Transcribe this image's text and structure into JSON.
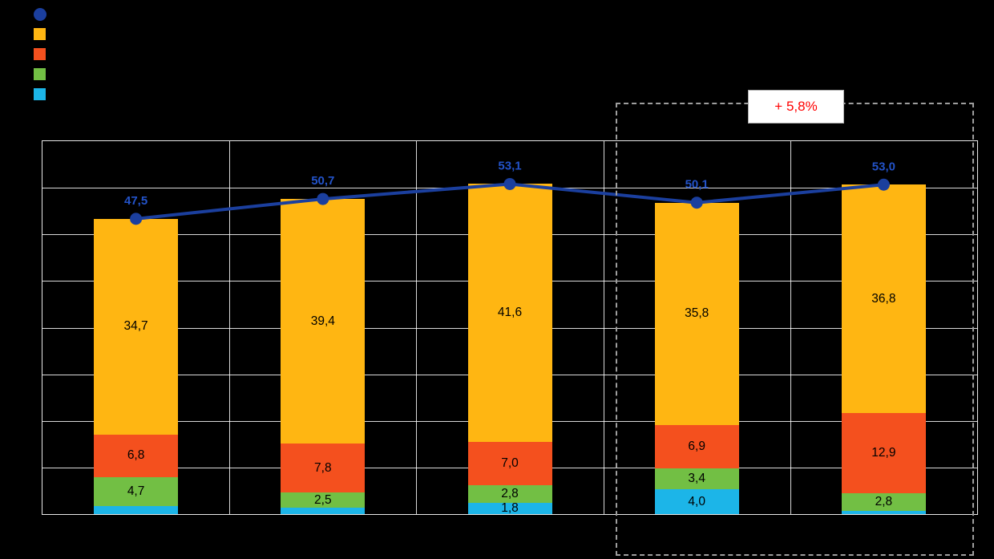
{
  "chart_data": {
    "type": "bar",
    "stacked": true,
    "title": "",
    "categories": [
      "",
      "",
      "",
      "",
      ""
    ],
    "ylim": [
      0,
      60
    ],
    "y_divisions": 8,
    "grid": true,
    "legend_position": "top-left",
    "series": [
      {
        "name": "cyan",
        "color": "#1CB5E8",
        "values": [
          1.3,
          1.0,
          1.8,
          4.0,
          0.5
        ],
        "labels": [
          "",
          "",
          "1,8",
          "4,0",
          ""
        ]
      },
      {
        "name": "green",
        "color": "#72BF44",
        "values": [
          4.7,
          2.5,
          2.8,
          3.4,
          2.8
        ],
        "labels": [
          "4,7",
          "2,5",
          "2,8",
          "3,4",
          "2,8"
        ]
      },
      {
        "name": "red",
        "color": "#F4501E",
        "values": [
          6.8,
          7.8,
          7.0,
          6.9,
          12.9
        ],
        "labels": [
          "6,8",
          "7,8",
          "7,0",
          "6,9",
          "12,9"
        ]
      },
      {
        "name": "orange",
        "color": "#FFB612",
        "values": [
          34.7,
          39.4,
          41.6,
          35.8,
          36.8
        ],
        "labels": [
          "34,7",
          "39,4",
          "41,6",
          "35,8",
          "36,8"
        ]
      }
    ],
    "line": {
      "name": "total",
      "color": "#1B3F9E",
      "label_color": "#2353C9",
      "values": [
        47.5,
        50.7,
        53.1,
        50.1,
        53.0
      ],
      "labels": [
        "47,5",
        "50,7",
        "53,1",
        "50,1",
        "53,0"
      ]
    },
    "annotation": {
      "text": "+ 5,8%",
      "color": "#FF0000"
    },
    "highlight_last_n": 2
  },
  "legend": {
    "items": [
      {
        "key": "total-line",
        "shape": "circle",
        "color": "#1B3F9E",
        "label": ""
      },
      {
        "key": "orange-series",
        "shape": "square",
        "color": "#FFB612",
        "label": ""
      },
      {
        "key": "red-series",
        "shape": "square",
        "color": "#F4501E",
        "label": ""
      },
      {
        "key": "green-series",
        "shape": "square",
        "color": "#72BF44",
        "label": ""
      },
      {
        "key": "cyan-series",
        "shape": "square",
        "color": "#1CB5E8",
        "label": ""
      }
    ]
  }
}
